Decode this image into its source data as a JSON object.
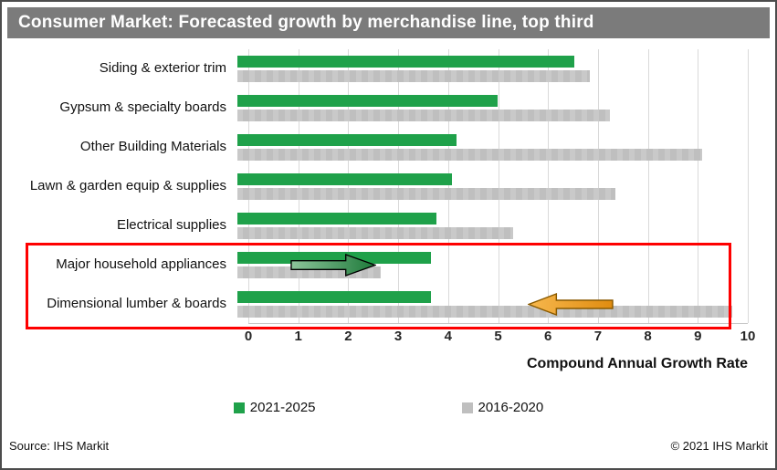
{
  "window": {
    "title": "Consumer Market: Forecasted growth by merchandise line, top third",
    "source": "Source: IHS Markit",
    "copyright": "© 2021 IHS Markit"
  },
  "chart_data": {
    "type": "bar",
    "orientation": "horizontal",
    "title": "Consumer Market: Forecasted growth by merchandise line, top third",
    "categories": [
      "Siding & exterior trim",
      "Gypsum & specialty boards",
      "Other Building Materials",
      "Lawn & garden equip & supplies",
      "Electrical supplies",
      "Major household appliances",
      "Dimensional lumber & boards"
    ],
    "series": [
      {
        "name": "2021-2025",
        "color": "#1fa14a",
        "values": [
          6.6,
          5.1,
          4.3,
          4.2,
          3.9,
          3.8,
          3.8
        ]
      },
      {
        "name": "2016-2020",
        "color": "#bfbfbf",
        "values": [
          6.9,
          7.3,
          9.1,
          7.4,
          5.4,
          2.8,
          9.7
        ]
      }
    ],
    "xlabel": "Compound Annual Growth Rate",
    "xlim": [
      0,
      10
    ],
    "xticks": [
      0,
      1,
      2,
      3,
      4,
      5,
      6,
      7,
      8,
      9,
      10
    ],
    "grid": true,
    "legend_position": "bottom",
    "annotations": [
      {
        "type": "highlight-box",
        "color": "#fe0000",
        "rows": [
          "Major household appliances",
          "Dimensional lumber & boards"
        ]
      },
      {
        "type": "arrow",
        "direction": "right",
        "color": "#3fa34d",
        "row": "Major household appliances",
        "x_from": 0.9,
        "x_to": 2.5
      },
      {
        "type": "arrow",
        "direction": "left",
        "color": "#f0991e",
        "row": "Dimensional lumber & boards",
        "x_from": 7.3,
        "x_to": 5.6
      }
    ]
  }
}
